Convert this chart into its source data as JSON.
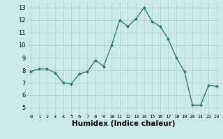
{
  "x": [
    0,
    1,
    2,
    3,
    4,
    5,
    6,
    7,
    8,
    9,
    10,
    11,
    12,
    13,
    14,
    15,
    16,
    17,
    18,
    19,
    20,
    21,
    22,
    23
  ],
  "y": [
    7.9,
    8.1,
    8.1,
    7.8,
    7.0,
    6.9,
    7.7,
    7.9,
    8.8,
    8.3,
    10.0,
    12.0,
    11.5,
    12.1,
    13.0,
    11.9,
    11.5,
    10.5,
    9.0,
    7.9,
    5.2,
    5.2,
    6.8,
    6.7
  ],
  "line_color": "#2d7d6e",
  "marker": "D",
  "marker_size": 2.0,
  "linewidth": 1.0,
  "bg_color": "#cceaea",
  "grid_color": "#b0d4d4",
  "xlabel": "Humidex (Indice chaleur)",
  "xlabel_fontsize": 7.5,
  "xlim": [
    -0.5,
    23.5
  ],
  "ylim": [
    4.5,
    13.5
  ],
  "yticks": [
    5,
    6,
    7,
    8,
    9,
    10,
    11,
    12,
    13
  ],
  "xticks": [
    0,
    1,
    2,
    3,
    4,
    5,
    6,
    7,
    8,
    9,
    10,
    11,
    12,
    13,
    14,
    15,
    16,
    17,
    18,
    19,
    20,
    21,
    22,
    23
  ],
  "tick_fontsize": 5.0,
  "ytick_fontsize": 6.0
}
